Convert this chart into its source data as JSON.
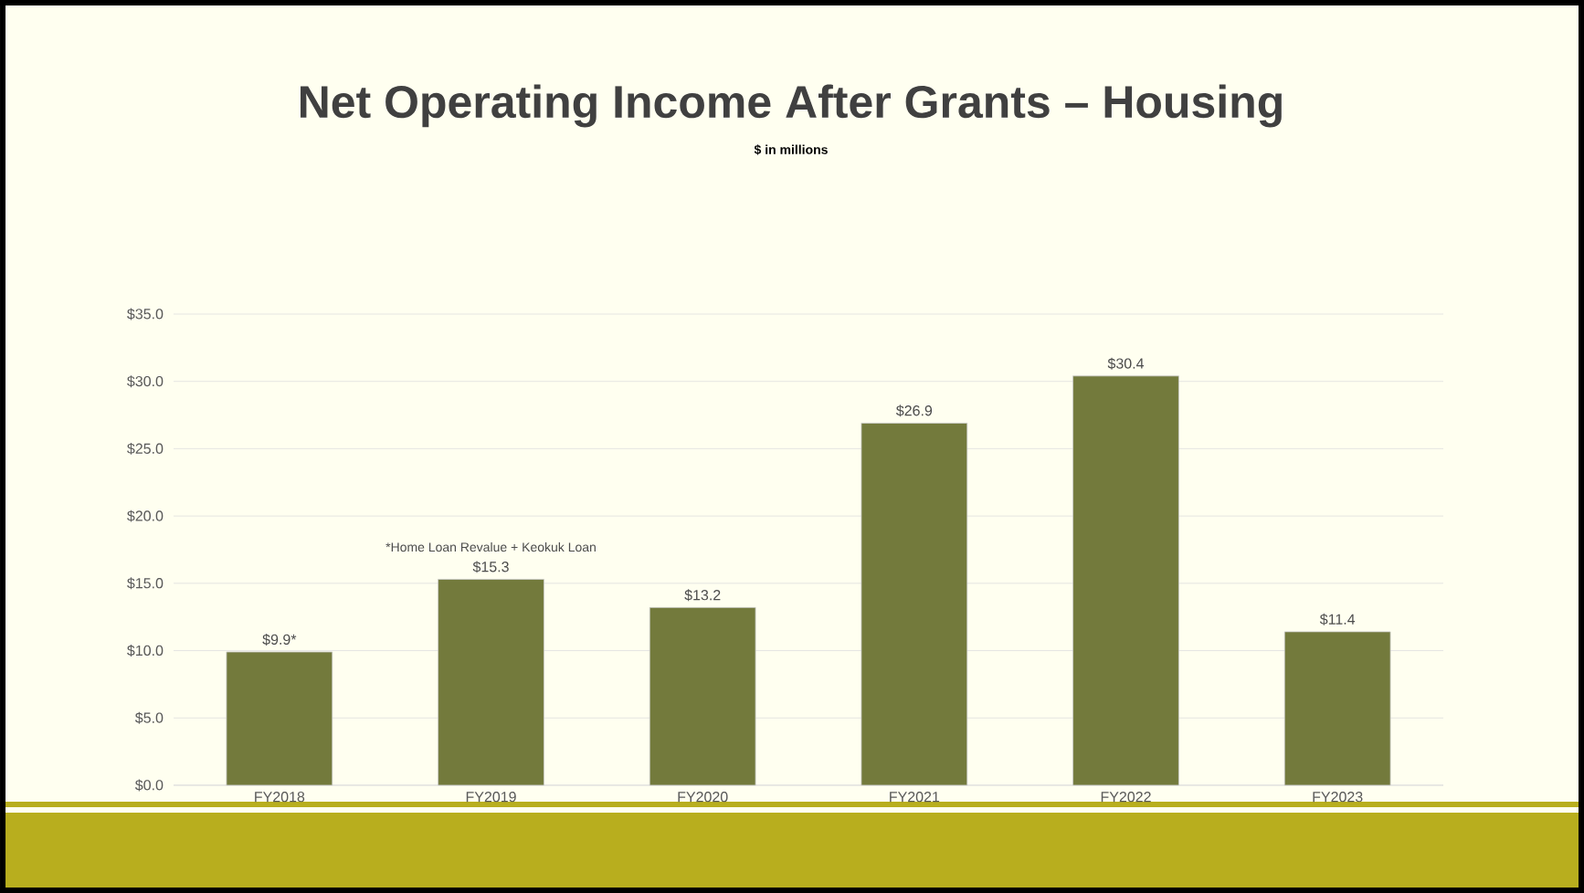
{
  "chart_data": {
    "type": "bar",
    "title": "Net Operating Income After Grants – Housing",
    "subtitle": "$ in millions",
    "categories": [
      "FY2018",
      "FY2019",
      "FY2020",
      "FY2021",
      "FY2022",
      "FY2023"
    ],
    "values": [
      9.9,
      15.3,
      13.2,
      26.9,
      30.4,
      11.4
    ],
    "value_labels": [
      "$9.9*",
      "$15.3",
      "$13.2",
      "$26.9",
      "$30.4",
      "$11.4"
    ],
    "color": "#737a3c",
    "ylim": [
      0,
      35
    ],
    "yticks": [
      {
        "value": 0,
        "label": "$0.0"
      },
      {
        "value": 5,
        "label": "$5.0"
      },
      {
        "value": 10,
        "label": "$10.0"
      },
      {
        "value": 15,
        "label": "$15.0"
      },
      {
        "value": 20,
        "label": "$20.0"
      },
      {
        "value": 25,
        "label": "$25.0"
      },
      {
        "value": 30,
        "label": "$30.0"
      },
      {
        "value": 35,
        "label": "$35.0"
      }
    ],
    "grid": "y",
    "annotations": [
      "*Home Loan Revalue + Keokuk Loan"
    ]
  }
}
